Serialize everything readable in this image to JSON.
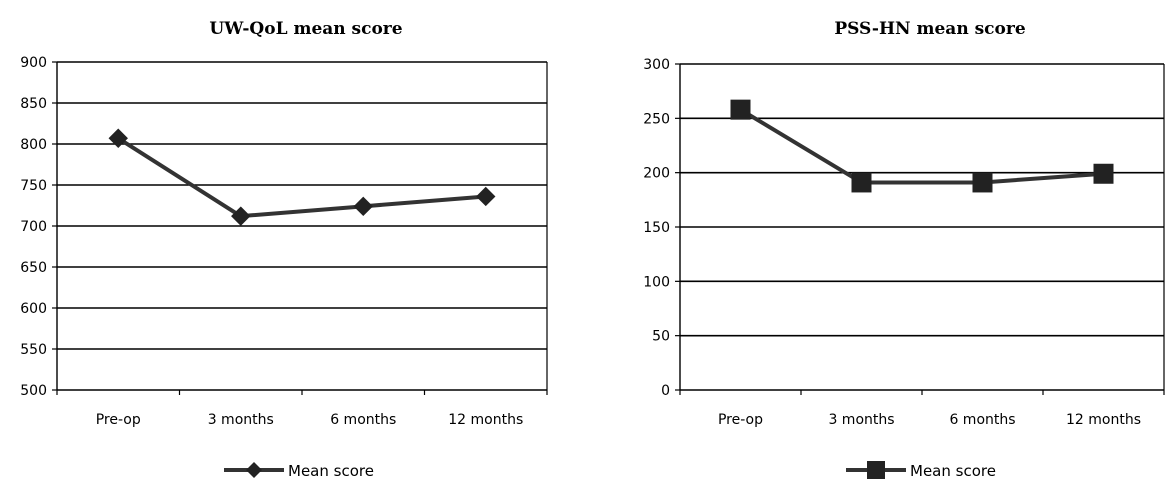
{
  "chart_data": [
    {
      "type": "line",
      "title": "UW-QoL mean score",
      "categories": [
        "Pre-op",
        "3 months",
        "6 months",
        "12 months"
      ],
      "yticks": [
        "900",
        "850",
        "800",
        "750",
        "700",
        "650",
        "600",
        "550",
        "500"
      ],
      "ylim": [
        500,
        900
      ],
      "grid": true,
      "legend_position": "bottom",
      "marker": "diamond",
      "series": [
        {
          "name": "Mean score",
          "values": [
            807,
            712,
            724,
            736
          ]
        }
      ]
    },
    {
      "type": "line",
      "title": "PSS-HN mean score",
      "categories": [
        "Pre-op",
        "3 months",
        "6 months",
        "12 months"
      ],
      "yticks": [
        "300",
        "250",
        "200",
        "150",
        "100",
        "50",
        "0"
      ],
      "ylim": [
        0,
        300
      ],
      "grid": true,
      "legend_position": "bottom",
      "marker": "square",
      "series": [
        {
          "name": "Mean score",
          "values": [
            258,
            191,
            191,
            199
          ]
        }
      ]
    }
  ]
}
